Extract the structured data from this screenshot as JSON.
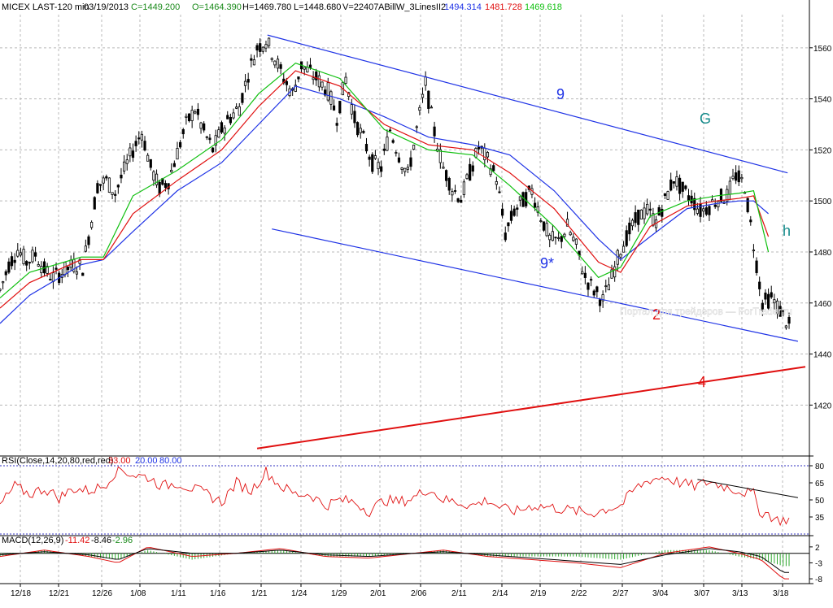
{
  "header": {
    "symbol": "MICEX LAST-120 min",
    "date": "03/19/2013",
    "close": "C=1449.200",
    "open": "O=1464.390",
    "high": "H=1469.780",
    "low": "L=1448.680",
    "volume": "V=22407",
    "indicator_name": "ABillW_3LinesII2",
    "line_values": [
      "1494.314",
      "1481.728",
      "1469.618"
    ]
  },
  "colors": {
    "blue_line": "#1f33e6",
    "red_line": "#e01010",
    "green_line": "#10c010",
    "candle": "#000000",
    "grid": "#b8b8b8",
    "rsi_line": "#e01010",
    "rsi_levels": "#3030c0",
    "macd_hist": "#2ea82e"
  },
  "annotations": {
    "nine": "9",
    "nine_star": "9*",
    "g": "G",
    "h": "h",
    "two": "2",
    "four": "4",
    "watermark": "Портал для трейдеров — ForTrader.ru"
  },
  "rsi": {
    "label": "RSI(Close,14,20,80,red,red)",
    "value": "33.00",
    "level_low": "20.00",
    "level_high": "80.00",
    "ticks": [
      "80",
      "65",
      "50",
      "35"
    ]
  },
  "macd": {
    "label": "MACD(12,26,9)",
    "v1": "-11.42",
    "v2": "-8.46",
    "v3": "-2.96",
    "ticks": [
      "2",
      "-3",
      "-8"
    ]
  },
  "chart_data": {
    "type": "candlestick",
    "y_ticks": [
      1420,
      1440,
      1460,
      1480,
      1500,
      1520,
      1540,
      1560
    ],
    "ylim": [
      1401,
      1573
    ],
    "x_ticks": [
      "12/18",
      "12/21",
      "12/26",
      "1/08",
      "1/11",
      "1/16",
      "1/21",
      "1/24",
      "1/29",
      "2/01",
      "2/06",
      "2/11",
      "2/14",
      "2/19",
      "2/22",
      "2/27",
      "3/04",
      "3/07",
      "3/13",
      "3/18"
    ],
    "price_path": [
      [
        0,
        1465
      ],
      [
        6,
        1475
      ],
      [
        12,
        1481
      ],
      [
        18,
        1476
      ],
      [
        24,
        1479
      ],
      [
        30,
        1473
      ],
      [
        36,
        1470
      ],
      [
        42,
        1472
      ],
      [
        50,
        1475
      ],
      [
        56,
        1474
      ],
      [
        60,
        1486
      ],
      [
        66,
        1506
      ],
      [
        72,
        1508
      ],
      [
        78,
        1503
      ],
      [
        84,
        1512
      ],
      [
        90,
        1520
      ],
      [
        96,
        1527
      ],
      [
        102,
        1513
      ],
      [
        108,
        1505
      ],
      [
        114,
        1508
      ],
      [
        120,
        1519
      ],
      [
        126,
        1530
      ],
      [
        132,
        1536
      ],
      [
        138,
        1527
      ],
      [
        144,
        1520
      ],
      [
        150,
        1528
      ],
      [
        156,
        1533
      ],
      [
        162,
        1537
      ],
      [
        168,
        1550
      ],
      [
        174,
        1560
      ],
      [
        180,
        1563
      ],
      [
        186,
        1556
      ],
      [
        192,
        1548
      ],
      [
        198,
        1542
      ],
      [
        204,
        1553
      ],
      [
        210,
        1550
      ],
      [
        216,
        1547
      ],
      [
        222,
        1543
      ],
      [
        228,
        1533
      ],
      [
        234,
        1548
      ],
      [
        240,
        1532
      ],
      [
        246,
        1524
      ],
      [
        252,
        1515
      ],
      [
        258,
        1513
      ],
      [
        264,
        1528
      ],
      [
        270,
        1518
      ],
      [
        276,
        1510
      ],
      [
        282,
        1528
      ],
      [
        288,
        1546
      ],
      [
        294,
        1527
      ],
      [
        300,
        1513
      ],
      [
        306,
        1505
      ],
      [
        312,
        1501
      ],
      [
        318,
        1511
      ],
      [
        324,
        1521
      ],
      [
        330,
        1516
      ],
      [
        336,
        1509
      ],
      [
        342,
        1487
      ],
      [
        348,
        1496
      ],
      [
        354,
        1500
      ],
      [
        360,
        1504
      ],
      [
        366,
        1494
      ],
      [
        372,
        1485
      ],
      [
        378,
        1484
      ],
      [
        384,
        1490
      ],
      [
        390,
        1482
      ],
      [
        396,
        1470
      ],
      [
        402,
        1465
      ],
      [
        408,
        1461
      ],
      [
        414,
        1470
      ],
      [
        420,
        1481
      ],
      [
        426,
        1488
      ],
      [
        432,
        1494
      ],
      [
        438,
        1496
      ],
      [
        444,
        1492
      ],
      [
        450,
        1500
      ],
      [
        456,
        1509
      ],
      [
        462,
        1504
      ],
      [
        468,
        1501
      ],
      [
        474,
        1496
      ],
      [
        480,
        1498
      ],
      [
        486,
        1501
      ],
      [
        492,
        1502
      ],
      [
        498,
        1510
      ],
      [
        504,
        1506
      ],
      [
        510,
        1483
      ],
      [
        516,
        1460
      ],
      [
        522,
        1462
      ],
      [
        528,
        1457
      ],
      [
        534,
        1451
      ]
    ],
    "indicator_lines": {
      "blue": [
        [
          0,
          1452
        ],
        [
          20,
          1463
        ],
        [
          55,
          1475
        ],
        [
          70,
          1477
        ],
        [
          90,
          1488
        ],
        [
          120,
          1504
        ],
        [
          150,
          1515
        ],
        [
          175,
          1530
        ],
        [
          200,
          1545
        ],
        [
          230,
          1540
        ],
        [
          260,
          1533
        ],
        [
          290,
          1525
        ],
        [
          320,
          1522
        ],
        [
          345,
          1518
        ],
        [
          375,
          1504
        ],
        [
          405,
          1485
        ],
        [
          420,
          1477
        ],
        [
          440,
          1486
        ],
        [
          465,
          1497
        ],
        [
          485,
          1499
        ],
        [
          500,
          1500
        ],
        [
          510,
          1500
        ],
        [
          520,
          1495
        ]
      ],
      "red": [
        [
          0,
          1458
        ],
        [
          20,
          1468
        ],
        [
          55,
          1477
        ],
        [
          70,
          1477
        ],
        [
          90,
          1495
        ],
        [
          120,
          1508
        ],
        [
          150,
          1520
        ],
        [
          175,
          1537
        ],
        [
          200,
          1551
        ],
        [
          230,
          1545
        ],
        [
          260,
          1530
        ],
        [
          290,
          1522
        ],
        [
          320,
          1520
        ],
        [
          345,
          1511
        ],
        [
          375,
          1497
        ],
        [
          405,
          1476
        ],
        [
          420,
          1472
        ],
        [
          440,
          1490
        ],
        [
          465,
          1498
        ],
        [
          485,
          1500
        ],
        [
          500,
          1501
        ],
        [
          510,
          1502
        ],
        [
          520,
          1486
        ]
      ],
      "green": [
        [
          0,
          1462
        ],
        [
          20,
          1472
        ],
        [
          55,
          1478
        ],
        [
          70,
          1478
        ],
        [
          90,
          1502
        ],
        [
          120,
          1512
        ],
        [
          150,
          1524
        ],
        [
          175,
          1542
        ],
        [
          200,
          1554
        ],
        [
          230,
          1548
        ],
        [
          260,
          1528
        ],
        [
          290,
          1520
        ],
        [
          320,
          1518
        ],
        [
          345,
          1506
        ],
        [
          375,
          1490
        ],
        [
          405,
          1470
        ],
        [
          420,
          1474
        ],
        [
          440,
          1494
        ],
        [
          465,
          1500
        ],
        [
          485,
          1502
        ],
        [
          500,
          1503
        ],
        [
          510,
          1504
        ],
        [
          520,
          1480
        ]
      ]
    },
    "trend_lines": [
      {
        "label": "9",
        "color": "blue",
        "from": [
          181,
          1565
        ],
        "to": [
          533,
          1511
        ]
      },
      {
        "label": "9*",
        "color": "blue",
        "from": [
          184,
          1489
        ],
        "to": [
          540,
          1445
        ]
      },
      {
        "label": "4",
        "color": "red",
        "from": [
          174,
          1403
        ],
        "to": [
          545,
          1435
        ]
      }
    ],
    "rsi_path": [
      [
        0,
        45
      ],
      [
        10,
        62
      ],
      [
        20,
        55
      ],
      [
        30,
        60
      ],
      [
        40,
        52
      ],
      [
        50,
        60
      ],
      [
        60,
        58
      ],
      [
        70,
        62
      ],
      [
        80,
        78
      ],
      [
        90,
        72
      ],
      [
        100,
        70
      ],
      [
        110,
        62
      ],
      [
        120,
        65
      ],
      [
        130,
        60
      ],
      [
        140,
        55
      ],
      [
        150,
        48
      ],
      [
        160,
        65
      ],
      [
        170,
        58
      ],
      [
        180,
        75
      ],
      [
        190,
        62
      ],
      [
        200,
        55
      ],
      [
        210,
        55
      ],
      [
        220,
        45
      ],
      [
        230,
        50
      ],
      [
        240,
        48
      ],
      [
        250,
        40
      ],
      [
        260,
        50
      ],
      [
        270,
        48
      ],
      [
        280,
        52
      ],
      [
        290,
        60
      ],
      [
        300,
        50
      ],
      [
        310,
        48
      ],
      [
        320,
        45
      ],
      [
        330,
        50
      ],
      [
        340,
        42
      ],
      [
        350,
        40
      ],
      [
        360,
        45
      ],
      [
        370,
        44
      ],
      [
        380,
        42
      ],
      [
        390,
        40
      ],
      [
        400,
        38
      ],
      [
        410,
        42
      ],
      [
        420,
        45
      ],
      [
        430,
        60
      ],
      [
        440,
        68
      ],
      [
        450,
        70
      ],
      [
        460,
        65
      ],
      [
        470,
        62
      ],
      [
        480,
        66
      ],
      [
        490,
        62
      ],
      [
        500,
        58
      ],
      [
        510,
        55
      ],
      [
        515,
        38
      ],
      [
        520,
        38
      ],
      [
        525,
        32
      ],
      [
        535,
        33
      ]
    ],
    "macd_path": [
      [
        0,
        -1
      ],
      [
        30,
        1
      ],
      [
        60,
        -1
      ],
      [
        80,
        -3
      ],
      [
        100,
        2
      ],
      [
        130,
        -1
      ],
      [
        160,
        0
      ],
      [
        190,
        1.5
      ],
      [
        220,
        -1
      ],
      [
        250,
        -1.5
      ],
      [
        280,
        0
      ],
      [
        300,
        1
      ],
      [
        330,
        -1
      ],
      [
        360,
        -2
      ],
      [
        390,
        -3
      ],
      [
        420,
        -4.5
      ],
      [
        450,
        0
      ],
      [
        480,
        2
      ],
      [
        500,
        0
      ],
      [
        515,
        -2
      ],
      [
        530,
        -8
      ]
    ],
    "macd_signal_path": [
      [
        0,
        -0.5
      ],
      [
        30,
        0.5
      ],
      [
        60,
        -0.5
      ],
      [
        80,
        -2
      ],
      [
        100,
        1.5
      ],
      [
        130,
        0
      ],
      [
        160,
        0
      ],
      [
        190,
        1
      ],
      [
        220,
        -0.5
      ],
      [
        250,
        -1
      ],
      [
        280,
        0
      ],
      [
        300,
        0.5
      ],
      [
        330,
        -0.5
      ],
      [
        360,
        -1.5
      ],
      [
        390,
        -2.5
      ],
      [
        420,
        -3.5
      ],
      [
        450,
        -0.5
      ],
      [
        480,
        1.5
      ],
      [
        500,
        0.5
      ],
      [
        515,
        -1
      ],
      [
        530,
        -6
      ]
    ]
  }
}
